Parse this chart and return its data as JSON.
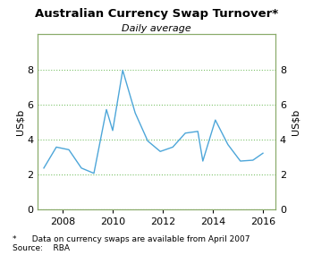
{
  "title": "Australian Currency Swap Turnover*",
  "subtitle": "Daily average",
  "ylabel_left": "US$b",
  "ylabel_right": "US$b",
  "footnote": "*      Data on currency swaps are available from April 2007",
  "source": "Source:    RBA",
  "ylim": [
    0,
    10
  ],
  "yticks": [
    0,
    2,
    4,
    6,
    8
  ],
  "grid_color": "#7dc36b",
  "line_color": "#4da6d9",
  "background_color": "#ffffff",
  "x": [
    2007.25,
    2007.75,
    2008.25,
    2008.75,
    2009.25,
    2009.75,
    2010.0,
    2010.4,
    2010.9,
    2011.4,
    2011.9,
    2012.4,
    2012.9,
    2013.4,
    2013.6,
    2014.1,
    2014.6,
    2015.1,
    2015.6,
    2016.0
  ],
  "y": [
    2.35,
    3.55,
    3.4,
    2.35,
    2.05,
    5.7,
    4.5,
    7.95,
    5.5,
    3.9,
    3.3,
    3.55,
    4.35,
    4.45,
    2.75,
    5.1,
    3.7,
    2.75,
    2.8,
    3.2
  ],
  "xlim": [
    2007.0,
    2016.5
  ],
  "xticks": [
    2008,
    2010,
    2012,
    2014,
    2016
  ],
  "border_color": "#8aab6a"
}
